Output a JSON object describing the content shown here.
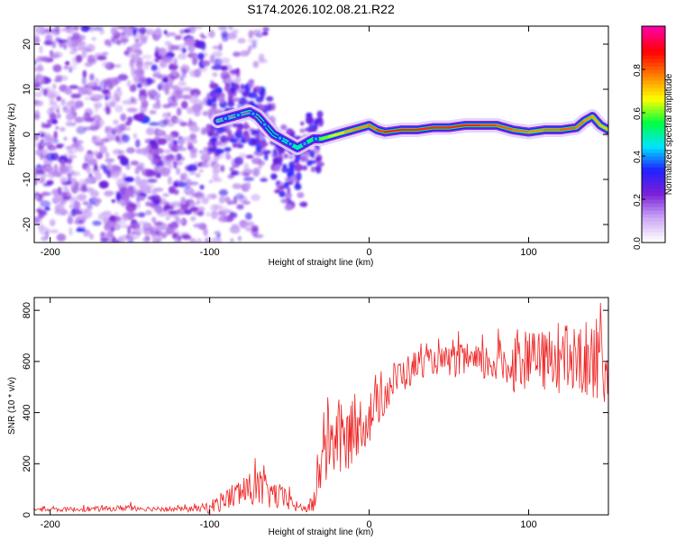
{
  "title": "S174.2026.102.08.21.R22",
  "chart_data": [
    {
      "type": "heatmap",
      "xlabel": "Height of straight line (km)",
      "ylabel": "Frequency (Hz)",
      "xlim": [
        -210,
        150
      ],
      "ylim": [
        -24,
        24
      ],
      "xticks": [
        -200,
        -100,
        0,
        100
      ],
      "yticks": [
        -20,
        -10,
        0,
        10,
        20
      ],
      "colorbar": {
        "label": "Normalized spectral amplitude",
        "range": [
          0,
          1
        ],
        "ticks": [
          0.0,
          0.2,
          0.4,
          0.6,
          0.8
        ],
        "tick_labels": [
          "0.0",
          "0.2",
          "0.4",
          "0.6",
          "0.8"
        ],
        "colors": [
          "#ffffff",
          "#c9a4f5",
          "#7a20d8",
          "#2020ff",
          "#00e5ff",
          "#00ff40",
          "#ffff00",
          "#ff8000",
          "#ff0000",
          "#ff00a0"
        ]
      },
      "ridge": {
        "x": [
          -95,
          -85,
          -75,
          -70,
          -65,
          -60,
          -55,
          -50,
          -45,
          -40,
          -35,
          -30,
          -25,
          -20,
          -15,
          -10,
          -5,
          0,
          5,
          10,
          20,
          30,
          40,
          50,
          60,
          70,
          80,
          90,
          100,
          110,
          120,
          130,
          135,
          140,
          145,
          150
        ],
        "freq": [
          3,
          4,
          5,
          4,
          2,
          0,
          -1,
          -2,
          -3,
          -2,
          -1,
          -1,
          -0.5,
          0,
          0.5,
          1,
          1.5,
          2,
          1,
          0.5,
          1,
          1,
          1.5,
          1.5,
          2,
          2,
          2,
          1,
          0.5,
          1,
          1,
          1.5,
          3,
          4,
          2,
          1
        ],
        "amplitude": [
          0.15,
          0.2,
          0.2,
          0.25,
          0.3,
          0.35,
          0.4,
          0.5,
          0.55,
          0.55,
          0.6,
          0.65,
          0.7,
          0.75,
          0.8,
          0.85,
          0.85,
          0.85,
          0.9,
          0.95,
          0.95,
          0.95,
          0.95,
          0.95,
          0.95,
          0.95,
          0.9,
          0.9,
          0.85,
          0.85,
          0.9,
          0.9,
          0.85,
          0.85,
          0.8,
          0.8
        ]
      }
    },
    {
      "type": "line",
      "xlabel": "Height of straight line (km)",
      "ylabel": "SNR (10 * v/v)",
      "xlim": [
        -210,
        150
      ],
      "ylim": [
        0,
        850
      ],
      "xticks": [
        -200,
        -100,
        0,
        100
      ],
      "yticks": [
        0,
        200,
        400,
        600,
        800
      ],
      "color": "#ee2222",
      "series": [
        {
          "name": "SNR",
          "x": [
            -210,
            -200,
            -180,
            -160,
            -150,
            -140,
            -120,
            -110,
            -100,
            -90,
            -80,
            -70,
            -60,
            -50,
            -45,
            -40,
            -35,
            -30,
            -25,
            -20,
            -15,
            -10,
            -5,
            0,
            5,
            10,
            15,
            20,
            25,
            30,
            40,
            50,
            60,
            70,
            80,
            90,
            100,
            110,
            120,
            130,
            140,
            150
          ],
          "values": [
            20,
            20,
            22,
            24,
            30,
            24,
            22,
            22,
            30,
            60,
            90,
            100,
            80,
            50,
            30,
            25,
            40,
            200,
            280,
            300,
            280,
            330,
            360,
            380,
            430,
            470,
            520,
            550,
            560,
            590,
            600,
            600,
            600,
            590,
            600,
            580,
            600,
            600,
            610,
            590,
            620,
            580
          ],
          "noise": [
            8,
            8,
            10,
            10,
            15,
            10,
            10,
            12,
            25,
            45,
            60,
            75,
            60,
            40,
            20,
            15,
            40,
            120,
            140,
            150,
            140,
            120,
            110,
            110,
            90,
            80,
            80,
            70,
            70,
            60,
            50,
            60,
            70,
            70,
            90,
            100,
            110,
            120,
            140,
            150,
            160,
            160
          ]
        }
      ]
    }
  ]
}
